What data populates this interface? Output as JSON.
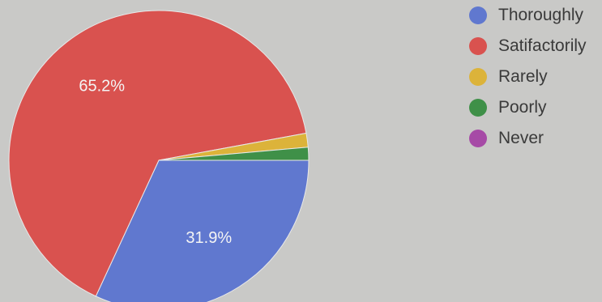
{
  "chart_data": {
    "type": "pie",
    "categories": [
      "Thoroughly",
      "Satifactorily",
      "Rarely",
      "Poorly",
      "Never"
    ],
    "values": [
      31.9,
      65.2,
      1.5,
      1.4,
      0
    ],
    "data_labels": [
      "31.9%",
      "65.2%",
      "",
      "",
      ""
    ],
    "colors": [
      "#6078cf",
      "#d9524f",
      "#dcb33a",
      "#3f9048",
      "#a64aa6"
    ],
    "legend_position": "right"
  }
}
